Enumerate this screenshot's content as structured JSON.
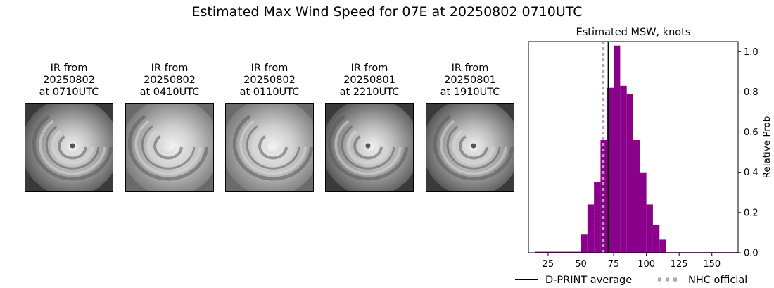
{
  "figure": {
    "title": "Estimated Max Wind Speed for 07E at 20250802 0710UTC"
  },
  "ir_panels": [
    {
      "line1": "IR from",
      "line2": "20250802",
      "line3": "at 0710UTC",
      "tone": "dark",
      "eye": true
    },
    {
      "line1": "IR from",
      "line2": "20250802",
      "line3": "at 0410UTC",
      "tone": "mid",
      "eye": false
    },
    {
      "line1": "IR from",
      "line2": "20250802",
      "line3": "at 0110UTC",
      "tone": "mid",
      "eye": false
    },
    {
      "line1": "IR from",
      "line2": "20250801",
      "line3": "at 2210UTC",
      "tone": "dark",
      "eye": true
    },
    {
      "line1": "IR from",
      "line2": "20250801",
      "line3": "at 1910UTC",
      "tone": "dark",
      "eye": true
    }
  ],
  "chart_data": {
    "type": "bar",
    "title": "Estimated MSW, knots",
    "xlabel": "",
    "ylabel": "Relative Prob",
    "xlim": [
      10,
      170
    ],
    "ylim": [
      0,
      1.05
    ],
    "xticks": [
      25,
      50,
      75,
      100,
      125,
      150
    ],
    "yticks": [
      0.0,
      0.2,
      0.4,
      0.6,
      0.8,
      1.0
    ],
    "y_axis_side": "right",
    "bin_width": 5,
    "bar_color": "#8b008b",
    "bins": [
      {
        "x": 17.5,
        "value": 0.005
      },
      {
        "x": 22.5,
        "value": 0.005
      },
      {
        "x": 27.5,
        "value": 0.005
      },
      {
        "x": 32.5,
        "value": 0.005
      },
      {
        "x": 37.5,
        "value": 0.005
      },
      {
        "x": 42.5,
        "value": 0.005
      },
      {
        "x": 47.5,
        "value": 0.005
      },
      {
        "x": 52.5,
        "value": 0.09
      },
      {
        "x": 57.5,
        "value": 0.24
      },
      {
        "x": 62.5,
        "value": 0.35
      },
      {
        "x": 67.5,
        "value": 0.56
      },
      {
        "x": 72.5,
        "value": 0.82
      },
      {
        "x": 77.5,
        "value": 1.03
      },
      {
        "x": 82.5,
        "value": 0.83
      },
      {
        "x": 87.5,
        "value": 0.79
      },
      {
        "x": 92.5,
        "value": 0.56
      },
      {
        "x": 97.5,
        "value": 0.4
      },
      {
        "x": 102.5,
        "value": 0.24
      },
      {
        "x": 107.5,
        "value": 0.14
      },
      {
        "x": 112.5,
        "value": 0.065
      },
      {
        "x": 117.5,
        "value": 0.003
      },
      {
        "x": 122.5,
        "value": 0.003
      },
      {
        "x": 127.5,
        "value": 0.003
      },
      {
        "x": 132.5,
        "value": 0.003
      },
      {
        "x": 137.5,
        "value": 0.003
      },
      {
        "x": 142.5,
        "value": 0.003
      },
      {
        "x": 147.5,
        "value": 0.003
      },
      {
        "x": 152.5,
        "value": 0.003
      },
      {
        "x": 157.5,
        "value": 0.003
      },
      {
        "x": 162.5,
        "value": 0.003
      },
      {
        "x": 167.5,
        "value": 0.003
      }
    ],
    "dprint_average": 71,
    "nhc_official": 67,
    "legend": [
      {
        "label": "D-PRINT average",
        "color": "#000000",
        "style": "solid"
      },
      {
        "label": "NHC official",
        "color": "#aaaaaa",
        "style": "dotted"
      }
    ],
    "legend_position": "bottom"
  }
}
